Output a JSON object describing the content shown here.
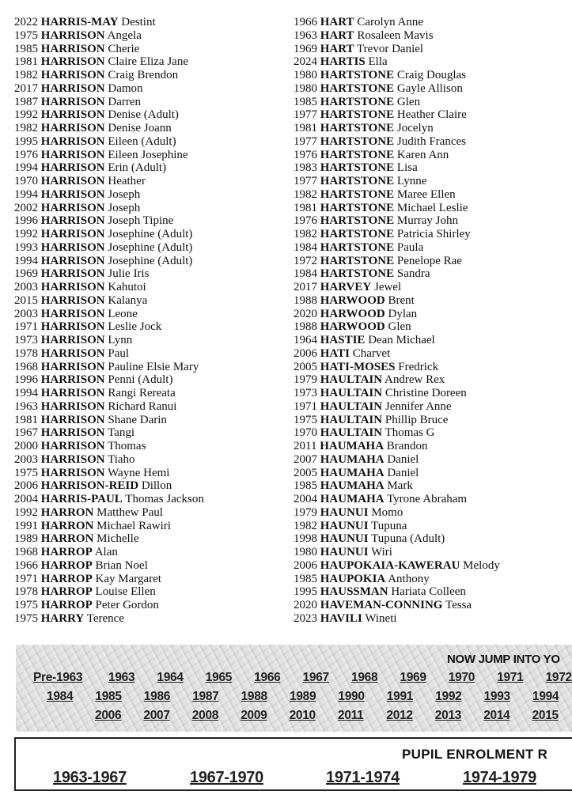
{
  "left_column": [
    [
      "2022",
      "HARRIS-MAY",
      "Destint"
    ],
    [
      "1975",
      "HARRISON",
      "Angela"
    ],
    [
      "1985",
      "HARRISON",
      "Cherie"
    ],
    [
      "1981",
      "HARRISON",
      "Claire Eliza Jane"
    ],
    [
      "1982",
      "HARRISON",
      "Craig Brendon"
    ],
    [
      "2017",
      "HARRISON",
      "Damon"
    ],
    [
      "1987",
      "HARRISON",
      "Darren"
    ],
    [
      "1992",
      "HARRISON",
      "Denise (Adult)"
    ],
    [
      "1982",
      "HARRISON",
      "Denise Joann"
    ],
    [
      "1995",
      "HARRISON",
      "Eileen (Adult)"
    ],
    [
      "1976",
      "HARRISON",
      "Eileen Josephine"
    ],
    [
      "1994",
      "HARRISON",
      "Erin (Adult)"
    ],
    [
      "1970",
      "HARRISON",
      "Heather"
    ],
    [
      "1994",
      "HARRISON",
      "Joseph"
    ],
    [
      "2002",
      "HARRISON",
      "Joseph"
    ],
    [
      "1996",
      "HARRISON",
      "Joseph Tipine"
    ],
    [
      "1992",
      "HARRISON",
      "Josephine (Adult)"
    ],
    [
      "1993",
      "HARRISON",
      "Josephine (Adult)"
    ],
    [
      "1994",
      "HARRISON",
      "Josephine (Adult)"
    ],
    [
      "1969",
      "HARRISON",
      "Julie Iris"
    ],
    [
      "2003",
      "HARRISON",
      "Kahutoi"
    ],
    [
      "2015",
      "HARRISON",
      "Kalanya"
    ],
    [
      "2003",
      "HARRISON",
      "Leone"
    ],
    [
      "1971",
      "HARRISON",
      "Leslie Jock"
    ],
    [
      "1973",
      "HARRISON",
      "Lynn"
    ],
    [
      "1978",
      "HARRISON",
      "Paul"
    ],
    [
      "1968",
      "HARRISON",
      "Pauline Elsie Mary"
    ],
    [
      "1996",
      "HARRISON",
      "Penni (Adult)"
    ],
    [
      "1994",
      "HARRISON",
      "Rangi Rereata"
    ],
    [
      "1963",
      "HARRISON",
      "Richard Ranui"
    ],
    [
      "1981",
      "HARRISON",
      "Shane Darin"
    ],
    [
      "1967",
      "HARRISON",
      "Tangi"
    ],
    [
      "2000",
      "HARRISON",
      "Thomas"
    ],
    [
      "2003",
      "HARRISON",
      "Tiaho"
    ],
    [
      "1975",
      "HARRISON",
      "Wayne Hemi"
    ],
    [
      "2006",
      "HARRISON-REID",
      "Dillon"
    ],
    [
      "2004",
      "HARRIS-PAUL",
      "Thomas Jackson"
    ],
    [
      "1992",
      "HARRON",
      "Matthew Paul"
    ],
    [
      "1991",
      "HARRON",
      "Michael Rawiri"
    ],
    [
      "1989",
      "HARRON",
      "Michelle"
    ],
    [
      "1968",
      "HARROP",
      "Alan"
    ],
    [
      "1966",
      "HARROP",
      "Brian Noel"
    ],
    [
      "1971",
      "HARROP",
      "Kay Margaret"
    ],
    [
      "1978",
      "HARROP",
      "Louise Ellen"
    ],
    [
      "1975",
      "HARROP",
      "Peter Gordon"
    ],
    [
      "1975",
      "HARRY",
      "Terence"
    ]
  ],
  "right_column": [
    [
      "1966",
      "HART",
      "Carolyn Anne"
    ],
    [
      "1963",
      "HART",
      "Rosaleen Mavis"
    ],
    [
      "1969",
      "HART",
      "Trevor Daniel"
    ],
    [
      "2024",
      "HARTIS",
      "Ella"
    ],
    [
      "1980",
      "HARTSTONE",
      "Craig Douglas"
    ],
    [
      "1980",
      "HARTSTONE",
      "Gayle Allison"
    ],
    [
      "1985",
      "HARTSTONE",
      "Glen"
    ],
    [
      "1977",
      "HARTSTONE",
      "Heather Claire"
    ],
    [
      "1981",
      "HARTSTONE",
      "Jocelyn"
    ],
    [
      "1977",
      "HARTSTONE",
      "Judith Frances"
    ],
    [
      "1976",
      "HARTSTONE",
      "Karen Ann"
    ],
    [
      "1983",
      "HARTSTONE",
      "Lisa"
    ],
    [
      "1977",
      "HARTSTONE",
      "Lynne"
    ],
    [
      "1982",
      "HARTSTONE",
      "Maree Ellen"
    ],
    [
      "1981",
      "HARTSTONE",
      "Michael Leslie"
    ],
    [
      "1976",
      "HARTSTONE",
      "Murray John"
    ],
    [
      "1982",
      "HARTSTONE",
      "Patricia Shirley"
    ],
    [
      "1984",
      "HARTSTONE",
      "Paula"
    ],
    [
      "1972",
      "HARTSTONE",
      "Penelope Rae"
    ],
    [
      "1984",
      "HARTSTONE",
      "Sandra"
    ],
    [
      "2017",
      "HARVEY",
      "Jewel"
    ],
    [
      "1988",
      "HARWOOD",
      "Brent"
    ],
    [
      "2020",
      "HARWOOD",
      "Dylan"
    ],
    [
      "1988",
      "HARWOOD",
      "Glen"
    ],
    [
      "1964",
      "HASTIE",
      "Dean Michael"
    ],
    [
      "2006",
      "HATI",
      "Charvet"
    ],
    [
      "2005",
      "HATI-MOSES",
      "Fredrick"
    ],
    [
      "1979",
      "HAULTAIN",
      "Andrew Rex"
    ],
    [
      "1973",
      "HAULTAIN",
      "Christine Doreen"
    ],
    [
      "1971",
      "HAULTAIN",
      "Jennifer Anne"
    ],
    [
      "1975",
      "HAULTAIN",
      "Phillip Bruce"
    ],
    [
      "1970",
      "HAULTAIN",
      "Thomas G"
    ],
    [
      "2011",
      "HAUMAHA",
      "Brandon"
    ],
    [
      "2007",
      "HAUMAHA",
      "Daniel"
    ],
    [
      "2005",
      "HAUMAHA",
      "Daniel"
    ],
    [
      "1985",
      "HAUMAHA",
      "Mark"
    ],
    [
      "2004",
      "HAUMAHA",
      "Tyrone Abraham"
    ],
    [
      "1979",
      "HAUNUI",
      "Momo"
    ],
    [
      "1982",
      "HAUNUI",
      "Tupuna"
    ],
    [
      "1998",
      "HAUNUI",
      "Tupuna (Adult)"
    ],
    [
      "1980",
      "HAUNUI",
      "Wiri"
    ],
    [
      "2006",
      "HAUPOKAIA-KAWERAU",
      "Melody"
    ],
    [
      "1985",
      "HAUPOKIA",
      "Anthony"
    ],
    [
      "1995",
      "HAUSSMAN",
      "Hariata Colleen"
    ],
    [
      "2020",
      "HAVEMAN-CONNING",
      "Tessa"
    ],
    [
      "2023",
      "HAVILI",
      "Wineti"
    ]
  ],
  "jump_nav": {
    "heading": "NOW JUMP INTO YO",
    "rows": [
      [
        "Pre-1963",
        "1963",
        "1964",
        "1965",
        "1966",
        "1967",
        "1968",
        "1969",
        "1970",
        "1971",
        "1972"
      ],
      [
        "1984",
        "1985",
        "1986",
        "1987",
        "1988",
        "1989",
        "1990",
        "1991",
        "1992",
        "1993",
        "1994"
      ],
      [
        "2006",
        "2007",
        "2008",
        "2009",
        "2010",
        "2011",
        "2012",
        "2013",
        "2014",
        "2015"
      ]
    ]
  },
  "enrolment": {
    "title": "PUPIL  ENROLMENT  R",
    "periods": [
      "1963-1967",
      "1967-1970",
      "1971-1974",
      "1974-1979"
    ]
  }
}
